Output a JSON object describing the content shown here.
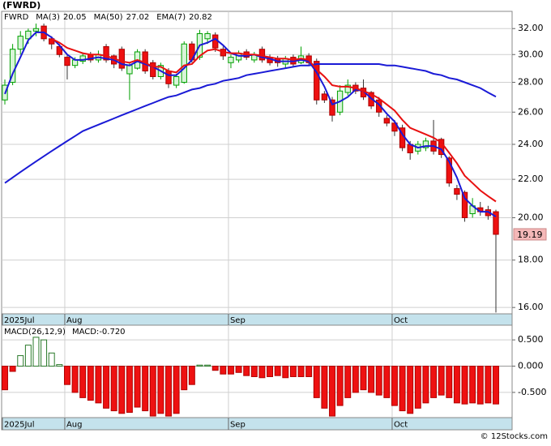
{
  "chart_data": [
    {
      "type": "candlestick",
      "title": "(FWRD)",
      "symbol": "FWRD",
      "log_scale": true,
      "grid": true,
      "up_color": "#00a000",
      "down_color": "#ee1111",
      "categories": [
        "2025Jul",
        null,
        null,
        null,
        null,
        null,
        null,
        null,
        "Aug",
        null,
        null,
        null,
        null,
        null,
        null,
        null,
        null,
        null,
        null,
        null,
        null,
        null,
        null,
        null,
        null,
        null,
        null,
        null,
        null,
        "Sep",
        null,
        null,
        null,
        null,
        null,
        null,
        null,
        null,
        null,
        null,
        null,
        null,
        null,
        null,
        null,
        null,
        null,
        null,
        null,
        null,
        "Oct",
        null,
        null,
        null,
        null,
        null,
        null,
        null,
        null,
        null,
        null,
        null,
        null,
        null
      ],
      "open": [
        26.8,
        28.0,
        30.4,
        31.2,
        31.8,
        32.2,
        31.2,
        30.6,
        29.8,
        29.2,
        29.5,
        30.0,
        29.6,
        30.6,
        29.9,
        30.4,
        28.6,
        29.0,
        30.2,
        29.4,
        28.4,
        28.8,
        27.8,
        28.0,
        30.8,
        29.8,
        31.2,
        31.5,
        30.4,
        29.4,
        29.6,
        30.2,
        29.6,
        30.4,
        29.8,
        29.7,
        29.3,
        29.8,
        29.4,
        29.9,
        29.5,
        27.2,
        26.8,
        26.0,
        27.3,
        27.8,
        27.6,
        27.3,
        26.8,
        25.6,
        25.3,
        25.0,
        24.0,
        23.6,
        23.8,
        24.2,
        24.3,
        23.2,
        21.5,
        21.3,
        20.2,
        20.5,
        20.4,
        20.3
      ],
      "high": [
        28.2,
        30.8,
        31.8,
        32.0,
        32.4,
        32.4,
        31.4,
        30.8,
        30.0,
        29.8,
        30.1,
        30.2,
        30.3,
        30.8,
        30.0,
        30.6,
        29.4,
        30.4,
        30.4,
        29.6,
        29.4,
        29.0,
        28.6,
        31.0,
        31.0,
        31.9,
        31.8,
        31.7,
        30.6,
        30.0,
        30.3,
        30.4,
        30.2,
        30.6,
        30.0,
        29.9,
        29.9,
        30.0,
        30.6,
        30.1,
        29.7,
        27.4,
        27.0,
        27.8,
        28.2,
        28.0,
        28.2,
        27.4,
        27.0,
        25.8,
        25.5,
        25.2,
        24.2,
        24.2,
        24.4,
        25.5,
        24.4,
        23.3,
        21.7,
        21.4,
        21.0,
        20.8,
        20.6,
        20.4
      ],
      "low": [
        26.5,
        27.8,
        30.0,
        30.8,
        31.4,
        31.0,
        30.4,
        29.8,
        28.2,
        29.0,
        29.3,
        29.4,
        29.4,
        29.4,
        29.0,
        28.8,
        26.8,
        28.9,
        28.6,
        28.2,
        28.2,
        27.6,
        27.6,
        27.9,
        29.4,
        29.6,
        30.8,
        30.2,
        29.6,
        29.0,
        29.4,
        29.6,
        29.4,
        29.4,
        29.2,
        29.1,
        29.0,
        29.1,
        29.3,
        29.2,
        26.5,
        26.6,
        25.4,
        25.8,
        27.1,
        27.2,
        26.8,
        26.2,
        25.7,
        25.1,
        24.5,
        23.6,
        23.1,
        23.4,
        23.6,
        23.4,
        23.2,
        21.6,
        20.9,
        19.8,
        20.0,
        20.1,
        19.9,
        15.8
      ],
      "close": [
        27.8,
        30.4,
        31.4,
        31.8,
        32.0,
        31.2,
        30.8,
        30.0,
        29.2,
        29.6,
        29.9,
        29.6,
        30.0,
        29.6,
        29.3,
        29.0,
        29.2,
        30.2,
        28.8,
        28.4,
        29.2,
        27.9,
        28.4,
        30.8,
        29.6,
        31.6,
        31.6,
        30.5,
        29.9,
        29.8,
        30.1,
        29.8,
        30.0,
        29.6,
        29.4,
        29.4,
        29.7,
        29.3,
        29.9,
        29.4,
        26.8,
        26.8,
        25.8,
        27.4,
        27.8,
        27.4,
        27.0,
        26.4,
        26.0,
        25.3,
        24.8,
        23.8,
        23.5,
        24.0,
        24.2,
        23.6,
        23.4,
        21.8,
        21.2,
        20.0,
        20.6,
        20.3,
        20.1,
        19.19
      ],
      "series": [
        {
          "name": "MA(3)",
          "color": "#1a1ad6",
          "last": 20.05,
          "values": [
            27.2,
            28.6,
            29.8,
            31.1,
            31.7,
            31.7,
            31.3,
            30.7,
            30.0,
            29.6,
            29.6,
            29.7,
            29.8,
            29.7,
            29.6,
            29.3,
            29.2,
            29.5,
            29.3,
            29.1,
            28.8,
            28.5,
            28.5,
            29.0,
            29.6,
            30.7,
            30.9,
            31.2,
            30.7,
            30.1,
            29.9,
            29.9,
            30.0,
            29.8,
            29.7,
            29.5,
            29.5,
            29.5,
            29.6,
            29.5,
            28.7,
            27.7,
            26.5,
            26.7,
            27.0,
            27.5,
            27.4,
            26.9,
            26.5,
            25.9,
            25.4,
            24.6,
            24.0,
            23.8,
            23.9,
            23.9,
            23.7,
            23.0,
            22.1,
            21.0,
            20.6,
            20.3,
            20.3,
            20.05
          ]
        },
        {
          "name": "MA(50)",
          "color": "#1a1ad6",
          "last": 27.02,
          "values": [
            21.8,
            22.1,
            22.4,
            22.7,
            23.0,
            23.3,
            23.6,
            23.9,
            24.2,
            24.5,
            24.8,
            25.0,
            25.2,
            25.4,
            25.6,
            25.8,
            26.0,
            26.2,
            26.4,
            26.6,
            26.8,
            27.0,
            27.1,
            27.3,
            27.5,
            27.6,
            27.8,
            27.9,
            28.1,
            28.2,
            28.3,
            28.5,
            28.6,
            28.7,
            28.8,
            28.9,
            29.0,
            29.1,
            29.2,
            29.2,
            29.3,
            29.3,
            29.3,
            29.3,
            29.3,
            29.3,
            29.3,
            29.3,
            29.3,
            29.2,
            29.2,
            29.1,
            29.0,
            28.9,
            28.8,
            28.6,
            28.5,
            28.3,
            28.2,
            28.0,
            27.8,
            27.6,
            27.3,
            27.02
          ]
        },
        {
          "name": "EMA(7)",
          "color": "#e81010",
          "last": 20.82,
          "values": [
            null,
            null,
            null,
            null,
            null,
            null,
            31.2,
            30.9,
            30.5,
            30.3,
            30.1,
            30.0,
            30.0,
            29.9,
            29.7,
            29.5,
            29.4,
            29.6,
            29.4,
            29.1,
            29.1,
            28.8,
            28.7,
            29.2,
            29.3,
            29.9,
            30.3,
            30.4,
            30.2,
            30.1,
            30.1,
            30.0,
            30.0,
            29.9,
            29.8,
            29.7,
            29.7,
            29.6,
            29.7,
            29.6,
            28.9,
            28.4,
            27.8,
            27.7,
            27.7,
            27.6,
            27.4,
            27.2,
            26.9,
            26.5,
            26.1,
            25.5,
            25.0,
            24.8,
            24.6,
            24.4,
            24.1,
            23.5,
            22.9,
            22.2,
            21.8,
            21.4,
            21.1,
            20.82
          ]
        }
      ],
      "ylim": [
        15.75,
        33.4
      ],
      "yticks": [
        {
          "value": 16,
          "label": "16.00"
        },
        {
          "value": 18,
          "label": "18.00"
        },
        {
          "value": 20,
          "label": "20.00"
        },
        {
          "value": 22,
          "label": "22.00"
        },
        {
          "value": 24,
          "label": "24.00"
        },
        {
          "value": 26,
          "label": "26.00"
        },
        {
          "value": 28,
          "label": "28.00"
        },
        {
          "value": 30,
          "label": "30.00"
        },
        {
          "value": 32,
          "label": "32.00"
        }
      ],
      "watermark": "© 12Stocks.com"
    },
    {
      "type": "bar",
      "title": "MACD(26,12,9)",
      "value_name": "MACD:",
      "last": {
        "value": -0.72,
        "label": "-0.720"
      },
      "up_color": "#9ed89e",
      "down_color": "#ee1111",
      "grid": true,
      "categories": [
        "2025Jul",
        null,
        null,
        null,
        null,
        null,
        null,
        null,
        "Aug",
        null,
        null,
        null,
        null,
        null,
        null,
        null,
        null,
        null,
        null,
        null,
        null,
        null,
        null,
        null,
        null,
        null,
        null,
        null,
        null,
        "Sep",
        null,
        null,
        null,
        null,
        null,
        null,
        null,
        null,
        null,
        null,
        null,
        null,
        null,
        null,
        null,
        null,
        null,
        null,
        null,
        null,
        "Oct",
        null,
        null,
        null,
        null,
        null,
        null,
        null,
        null,
        null,
        null,
        null,
        null,
        null
      ],
      "values": [
        -0.45,
        -0.1,
        0.2,
        0.4,
        0.55,
        0.5,
        0.25,
        0.03,
        -0.35,
        -0.5,
        -0.6,
        -0.65,
        -0.7,
        -0.8,
        -0.85,
        -0.9,
        -0.88,
        -0.78,
        -0.85,
        -0.95,
        -0.9,
        -0.95,
        -0.9,
        -0.45,
        -0.35,
        0.02,
        0.02,
        -0.08,
        -0.15,
        -0.15,
        -0.12,
        -0.18,
        -0.2,
        -0.22,
        -0.2,
        -0.18,
        -0.22,
        -0.2,
        -0.2,
        -0.2,
        -0.6,
        -0.8,
        -0.95,
        -0.75,
        -0.6,
        -0.5,
        -0.45,
        -0.5,
        -0.55,
        -0.6,
        -0.75,
        -0.85,
        -0.9,
        -0.8,
        -0.7,
        -0.6,
        -0.55,
        -0.6,
        -0.7,
        -0.72,
        -0.7,
        -0.72,
        -0.7,
        -0.72
      ],
      "ylim": [
        -0.98,
        0.78
      ],
      "yticks": [
        {
          "value": -0.5,
          "label": "-0.500"
        },
        {
          "value": 0,
          "label": "0.000"
        },
        {
          "value": 0.5,
          "label": "0.500"
        }
      ]
    }
  ]
}
